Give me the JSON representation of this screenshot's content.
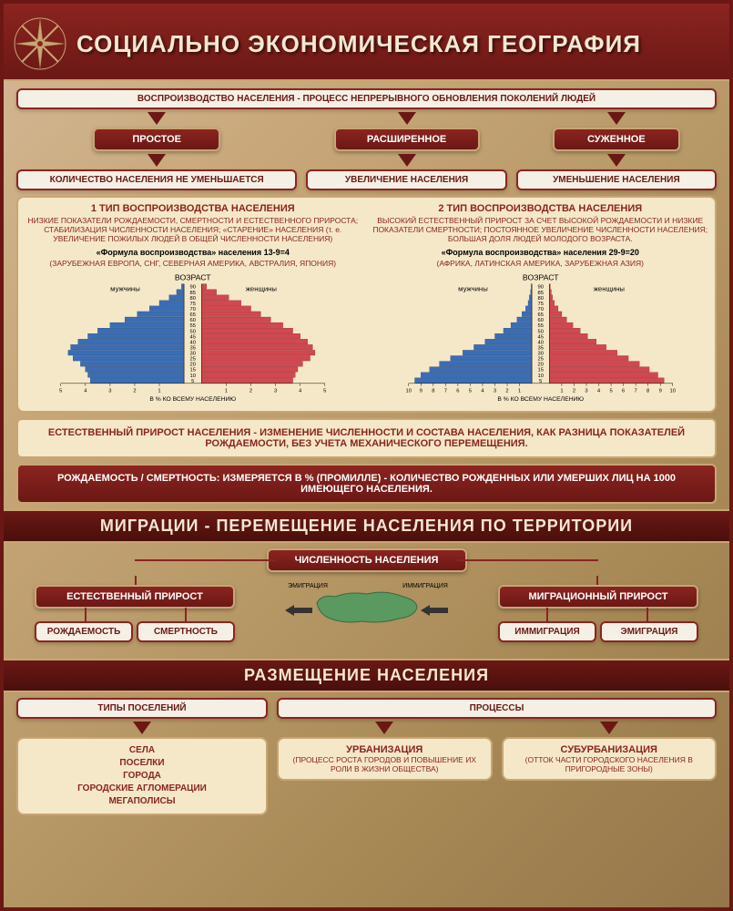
{
  "header": {
    "title": "СОЦИАЛЬНО ЭКОНОМИЧЕСКАЯ ГЕОГРАФИЯ"
  },
  "colors": {
    "dark_red": "#6b1815",
    "red": "#8b2420",
    "gold": "#c9a574",
    "cream": "#f5e8c8",
    "white": "#f5f0e6",
    "map_green": "#5a9960",
    "male_blue": "#3b6db5",
    "female_red": "#d04850"
  },
  "reproduction": {
    "main_def": "ВОСПРОИЗВОДСТВО НАСЕЛЕНИЯ - ПРОЦЕСС НЕПРЕРЫВНОГО ОБНОВЛЕНИЯ ПОКОЛЕНИЙ ЛЮДЕЙ",
    "types": [
      "ПРОСТОЕ",
      "РАСШИРЕННОЕ",
      "СУЖЕННОЕ"
    ],
    "subtypes": [
      "КОЛИЧЕСТВО НАСЕЛЕНИЯ НЕ УМЕНЬШАЕТСЯ",
      "УВЕЛИЧЕНИЕ НАСЕЛЕНИЯ",
      "УМЕНЬШЕНИЕ НАСЕЛЕНИЯ"
    ]
  },
  "types_section": {
    "type1": {
      "title": "1 ТИП ВОСПРОИЗВОДСТВА НАСЕЛЕНИЯ",
      "desc": "НИЗКИЕ ПОКАЗАТЕЛИ РОЖДАЕМОСТИ, СМЕРТНОСТИ И ЕСТЕСТВЕННОГО ПРИРОСТА; СТАБИЛИЗАЦИЯ ЧИСЛЕННОСТИ НАСЕЛЕНИЯ; «СТАРЕНИЕ» НАСЕЛЕНИЯ (т. е. УВЕЛИЧЕНИЕ ПОЖИЛЫХ ЛЮДЕЙ В ОБЩЕЙ ЧИСЛЕННОСТИ НАСЕЛЕНИЯ)",
      "formula": "«Формула воспроизводства» населения 13-9=4",
      "regions": "(ЗАРУБЕЖНАЯ ЕВРОПА, СНГ, СЕВЕРНАЯ АМЕРИКА, АВСТРАЛИЯ, ЯПОНИЯ)"
    },
    "type2": {
      "title": "2 ТИП ВОСПРОИЗВОДСТВА НАСЕЛЕНИЯ",
      "desc": "ВЫСОКИЙ ЕСТЕСТВЕННЫЙ ПРИРОСТ ЗА СЧЕТ ВЫСОКОЙ РОЖДАЕМОСТИ И НИЗКИЕ ПОКАЗАТЕЛИ СМЕРТНОСТИ; ПОСТОЯННОЕ УВЕЛИЧЕНИЕ ЧИСЛЕННОСТИ НАСЕЛЕНИЯ; БОЛЬШАЯ ДОЛЯ ЛЮДЕЙ МОЛОДОГО ВОЗРАСТА.",
      "formula": "«Формула воспроизводства» населения 29-9=20",
      "regions": "(АФРИКА, ЛАТИНСКАЯ АМЕРИКА, ЗАРУБЕЖНАЯ АЗИЯ)"
    }
  },
  "pyramids": {
    "axis_title": "ВОЗРАСТ",
    "x_label": "В % КО ВСЕМУ НАСЕЛЕНИЮ",
    "male_label": "мужчины",
    "female_label": "женщины",
    "ages": [
      5,
      10,
      15,
      20,
      25,
      30,
      35,
      40,
      45,
      50,
      55,
      60,
      65,
      70,
      75,
      80,
      85,
      90
    ],
    "pyramid1": {
      "xmax": 5,
      "xticks": [
        1,
        2,
        3,
        4,
        5
      ],
      "male": [
        3.8,
        3.9,
        4.0,
        4.2,
        4.5,
        4.7,
        4.6,
        4.3,
        3.9,
        3.5,
        3.0,
        2.4,
        1.9,
        1.4,
        1.0,
        0.6,
        0.3,
        0.1
      ],
      "female": [
        3.7,
        3.8,
        3.9,
        4.1,
        4.4,
        4.6,
        4.5,
        4.3,
        4.0,
        3.7,
        3.3,
        2.8,
        2.4,
        2.0,
        1.6,
        1.1,
        0.6,
        0.2
      ]
    },
    "pyramid2": {
      "xmax": 10,
      "xticks": [
        1,
        2,
        3,
        4,
        5,
        6,
        7,
        8,
        9,
        10
      ],
      "male": [
        9.5,
        9.0,
        8.3,
        7.5,
        6.6,
        5.6,
        4.7,
        3.8,
        3.0,
        2.3,
        1.7,
        1.2,
        0.8,
        0.5,
        0.3,
        0.2,
        0.1,
        0.05
      ],
      "female": [
        9.3,
        8.8,
        8.1,
        7.3,
        6.4,
        5.5,
        4.6,
        3.8,
        3.1,
        2.5,
        1.9,
        1.4,
        1.0,
        0.7,
        0.4,
        0.25,
        0.15,
        0.07
      ]
    }
  },
  "natural_growth": {
    "def": "ЕСТЕСТВЕННЫЙ ПРИРОСТ НАСЕЛЕНИЯ - ИЗМЕНЕНИЕ ЧИСЛЕННОСТИ И СОСТАВА НАСЕЛЕНИЯ, КАК РАЗНИЦА ПОКАЗАТЕЛЕЙ РОЖДАЕМОСТИ, БЕЗ УЧЕТА МЕХАНИЧЕСКОГО ПЕРЕМЕЩЕНИЯ.",
    "rate_def": "РОЖДАЕМОСТЬ / СМЕРТНОСТЬ: ИЗМЕРЯЕТСЯ В % (ПРОМИЛЛЕ) - КОЛИЧЕСТВО РОЖДЕННЫХ ИЛИ УМЕРШИХ ЛИЦ НА 1000 ИМЕЮЩЕГО НАСЕЛЕНИЯ."
  },
  "migration": {
    "title": "МИГРАЦИИ - ПЕРЕМЕЩЕНИЕ НАСЕЛЕНИЯ ПО ТЕРРИТОРИИ",
    "population": "ЧИСЛЕННОСТЬ НАСЕЛЕНИЯ",
    "natural": "ЕСТЕСТВЕННЫЙ ПРИРОСТ",
    "migration": "МИГРАЦИОННЫЙ ПРИРОСТ",
    "birth": "РОЖДАЕМОСТЬ",
    "death": "СМЕРТНОСТЬ",
    "immigration": "ИММИГРАЦИЯ",
    "emigration": "ЭМИГРАЦИЯ",
    "emig_label": "ЭМИГРАЦИЯ",
    "immig_label": "ИММИГРАЦИЯ"
  },
  "placement": {
    "title": "РАЗМЕЩЕНИЕ НАСЕЛЕНИЯ",
    "settlements_title": "ТИПЫ ПОСЕЛЕНИЙ",
    "processes_title": "ПРОЦЕССЫ",
    "settlements": [
      "СЕЛА",
      "ПОСЕЛКИ",
      "ГОРОДА",
      "ГОРОДСКИЕ АГЛОМЕРАЦИИ",
      "МЕГАПОЛИСЫ"
    ],
    "urbanization": {
      "title": "УРБАНИЗАЦИЯ",
      "desc": "(ПРОЦЕСС РОСТА ГОРОДОВ И ПОВЫШЕНИЕ ИХ РОЛИ В ЖИЗНИ ОБЩЕСТВА)"
    },
    "suburbanization": {
      "title": "СУБУРБАНИЗАЦИЯ",
      "desc": "(ОТТОК ЧАСТИ ГОРОДСКОГО НАСЕЛЕНИЯ В ПРИГОРОДНЫЕ ЗОНЫ)"
    }
  }
}
